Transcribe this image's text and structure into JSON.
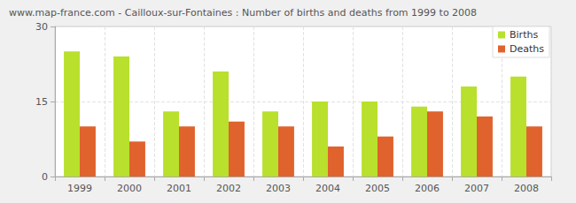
{
  "chart_data": {
    "type": "bar",
    "title": "www.map-france.com - Cailloux-sur-Fontaines : Number of births and deaths from 1999 to 2008",
    "categories": [
      "1999",
      "2000",
      "2001",
      "2002",
      "2003",
      "2004",
      "2005",
      "2006",
      "2007",
      "2008"
    ],
    "series": [
      {
        "name": "Births",
        "color": "#b8e02c",
        "values": [
          25,
          24,
          13,
          21,
          13,
          15,
          15,
          14,
          18,
          20
        ]
      },
      {
        "name": "Deaths",
        "color": "#e0622c",
        "values": [
          10,
          7,
          10,
          11,
          10,
          6,
          8,
          13,
          12,
          10
        ]
      }
    ],
    "ylim": [
      0,
      30
    ],
    "yticks": [
      0,
      15,
      30
    ],
    "grid": true,
    "legend": "upper right"
  }
}
